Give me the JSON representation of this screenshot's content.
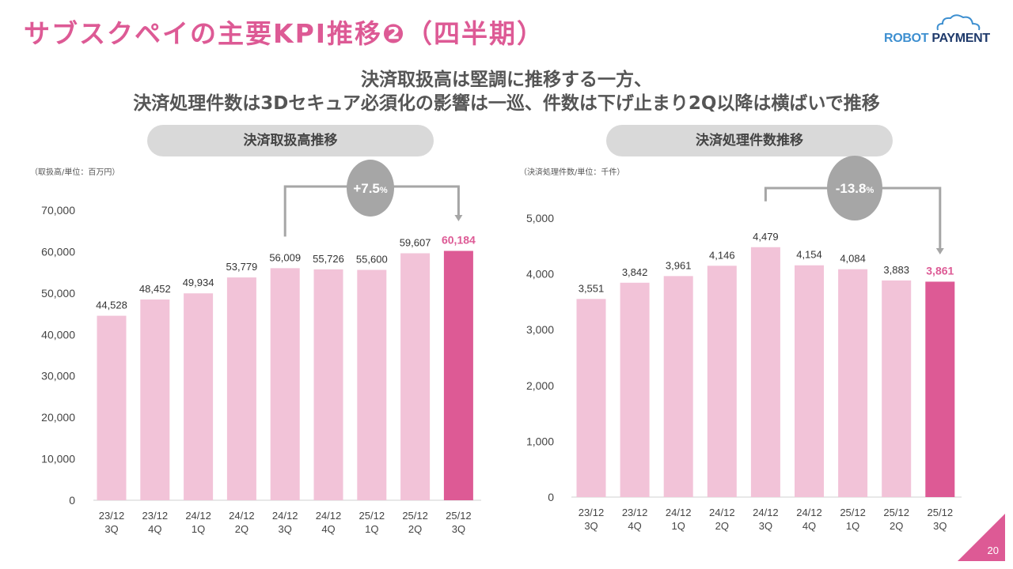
{
  "page": {
    "title": "サブスクペイの主要KPI推移❷（四半期）",
    "logo_text_1": "ROBOT",
    "logo_text_2": " PAYMENT",
    "subtitle_line1": "決済取扱高は堅調に推移する一方、",
    "subtitle_line2": "決済処理件数は3Dセキュア必須化の影響は一巡、件数は下げ止まり2Q以降は横ばいで推移",
    "page_number": "20",
    "colors": {
      "accent": "#dd5a95",
      "bar_normal": "#f2c3d8",
      "bar_highlight": "#dd5a95",
      "annotation_gray": "#a6a6a6",
      "pill_bg": "#d9d9d9"
    }
  },
  "chart_data": [
    {
      "type": "bar",
      "title": "決済取扱高推移",
      "unit_note": "（取扱高/単位：百万円）",
      "xlabel": "",
      "ylabel": "",
      "categories": [
        [
          "23/12",
          "3Q"
        ],
        [
          "23/12",
          "4Q"
        ],
        [
          "24/12",
          "1Q"
        ],
        [
          "24/12",
          "2Q"
        ],
        [
          "24/12",
          "3Q"
        ],
        [
          "24/12",
          "4Q"
        ],
        [
          "25/12",
          "1Q"
        ],
        [
          "25/12",
          "2Q"
        ],
        [
          "25/12",
          "3Q"
        ]
      ],
      "values": [
        44528,
        48452,
        49934,
        53779,
        56009,
        55726,
        55600,
        59607,
        60184
      ],
      "value_labels": [
        "44,528",
        "48,452",
        "49,934",
        "53,779",
        "56,009",
        "55,726",
        "55,600",
        "59,607",
        "60,184"
      ],
      "highlight_index": 8,
      "ylim": [
        0,
        70000
      ],
      "yticks": [
        0,
        10000,
        20000,
        30000,
        40000,
        50000,
        60000,
        70000
      ],
      "ytick_labels": [
        "0",
        "10,000",
        "20,000",
        "30,000",
        "40,000",
        "50,000",
        "60,000",
        "70,000"
      ],
      "grid": false,
      "annotation": {
        "from_index": 4,
        "to_index": 8,
        "label_main": "+7.5",
        "label_suffix": "%"
      }
    },
    {
      "type": "bar",
      "title": "決済処理件数推移",
      "unit_note": "（決済処理件数/単位：千件）",
      "xlabel": "",
      "ylabel": "",
      "categories": [
        [
          "23/12",
          "3Q"
        ],
        [
          "23/12",
          "4Q"
        ],
        [
          "24/12",
          "1Q"
        ],
        [
          "24/12",
          "2Q"
        ],
        [
          "24/12",
          "3Q"
        ],
        [
          "24/12",
          "4Q"
        ],
        [
          "25/12",
          "1Q"
        ],
        [
          "25/12",
          "2Q"
        ],
        [
          "25/12",
          "3Q"
        ]
      ],
      "values": [
        3551,
        3842,
        3961,
        4146,
        4479,
        4154,
        4084,
        3883,
        3861
      ],
      "value_labels": [
        "3,551",
        "3,842",
        "3,961",
        "4,146",
        "4,479",
        "4,154",
        "4,084",
        "3,883",
        "3,861"
      ],
      "highlight_index": 8,
      "ylim": [
        0,
        5000
      ],
      "yticks": [
        0,
        1000,
        2000,
        3000,
        4000,
        5000
      ],
      "ytick_labels": [
        "0",
        "1,000",
        "2,000",
        "3,000",
        "4,000",
        "5,000"
      ],
      "grid": false,
      "annotation": {
        "from_index": 4,
        "to_index": 8,
        "label_main": "-13.8",
        "label_suffix": "%"
      }
    }
  ]
}
